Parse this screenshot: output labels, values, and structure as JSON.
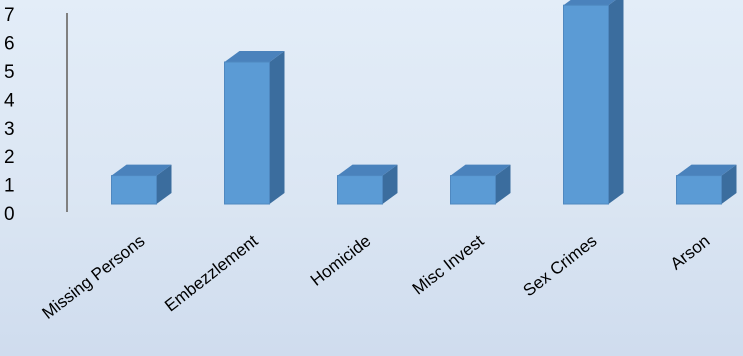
{
  "chart_data": {
    "type": "bar",
    "style": "3d-column",
    "categories": [
      "Missing Persons",
      "Embezzlement",
      "Homicide",
      "Misc Invest",
      "Sex Crimes",
      "Arson"
    ],
    "values": [
      1,
      5,
      1,
      1,
      7,
      1
    ],
    "y_ticks": [
      "0",
      "1",
      "2",
      "3",
      "4",
      "5",
      "6",
      "7"
    ],
    "ylim": [
      0,
      7
    ],
    "title": "",
    "xlabel": "",
    "ylabel": "",
    "grid": false,
    "legend": "none",
    "colors": {
      "bar_front": "#5b9bd5",
      "bar_side": "#3b6d9e",
      "bar_top": "#4a82bc",
      "axis": "#808080"
    }
  }
}
